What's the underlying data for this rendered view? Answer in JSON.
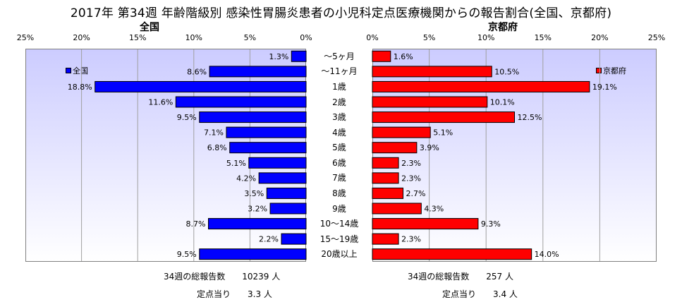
{
  "title": "2017年 第34週 年齢階級別 感染性胃腸炎患者の小児科定点医療機関からの報告割合(全国、京都府)",
  "chart_data": {
    "type": "bar",
    "categories": [
      "～5ヶ月",
      "～11ヶ月",
      "1歳",
      "2歳",
      "3歳",
      "4歳",
      "5歳",
      "6歳",
      "7歳",
      "8歳",
      "9歳",
      "10～14歳",
      "15～19歳",
      "20歳以上"
    ],
    "axis_ticks": [
      "25%",
      "20%",
      "15%",
      "10%",
      "5%",
      "0%"
    ],
    "axis_ticks_right": [
      "0%",
      "5%",
      "10%",
      "15%",
      "20%",
      "25%"
    ],
    "xlim": [
      0,
      25
    ],
    "series": [
      {
        "name": "全国",
        "panel_title": "全国",
        "color": "#0000ff",
        "values": [
          1.3,
          8.6,
          18.8,
          11.6,
          9.5,
          7.1,
          6.8,
          5.1,
          4.2,
          3.5,
          3.2,
          8.7,
          2.2,
          9.5
        ],
        "labels": [
          "1.3%",
          "8.6%",
          "18.8%",
          "11.6%",
          "9.5%",
          "7.1%",
          "6.8%",
          "5.1%",
          "4.2%",
          "3.5%",
          "3.2%",
          "8.7%",
          "2.2%",
          "9.5%"
        ]
      },
      {
        "name": "京都府",
        "panel_title": "京都府",
        "color": "#ff0000",
        "values": [
          1.6,
          10.5,
          19.1,
          10.1,
          12.5,
          5.1,
          3.9,
          2.3,
          2.3,
          2.7,
          4.3,
          9.3,
          2.3,
          14.0
        ],
        "labels": [
          "1.6%",
          "10.5%",
          "19.1%",
          "10.1%",
          "12.5%",
          "5.1%",
          "3.9%",
          "2.3%",
          "2.3%",
          "2.7%",
          "4.3%",
          "9.3%",
          "2.3%",
          "14.0%"
        ]
      }
    ],
    "grid": true,
    "legend_left": "top-left",
    "legend_right": "top-right"
  },
  "footer": {
    "left_total": "34週の総報告数　　10239 人",
    "left_per": "定点当り　　3.3 人",
    "right_total": "34週の総報告数　　257 人",
    "right_per": "定点当り　　3.4 人"
  }
}
